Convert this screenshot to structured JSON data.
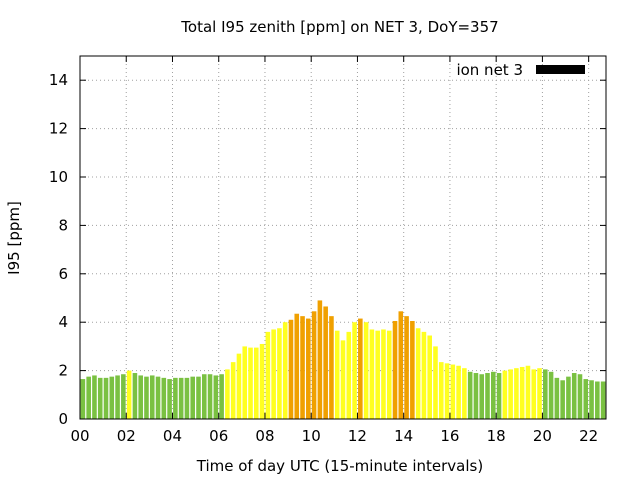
{
  "chart_data": {
    "type": "bar",
    "title": "Total I95 zenith [ppm] on NET 3, DoY=357",
    "xlabel": "Time of day UTC (15-minute intervals)",
    "ylabel": "I95 [ppm]",
    "xlim": [
      0,
      22.75
    ],
    "ylim": [
      0,
      15
    ],
    "x_ticks": [
      "00",
      "02",
      "04",
      "06",
      "08",
      "10",
      "12",
      "14",
      "16",
      "18",
      "20",
      "22"
    ],
    "y_ticks": [
      "0",
      "2",
      "4",
      "6",
      "8",
      "10",
      "12",
      "14"
    ],
    "grid": true,
    "legend": {
      "label": "ion net 3",
      "placement": "top-right",
      "color": "#000000"
    },
    "colors": {
      "green": "#7ac142",
      "yellow": "#ffff20",
      "orange": "#f0a000"
    },
    "interval_hours": 0.25,
    "values": [
      1.65,
      1.75,
      1.8,
      1.7,
      1.7,
      1.75,
      1.8,
      1.85,
      2.0,
      1.9,
      1.8,
      1.75,
      1.8,
      1.75,
      1.7,
      1.65,
      1.7,
      1.7,
      1.7,
      1.75,
      1.75,
      1.85,
      1.85,
      1.8,
      1.85,
      2.05,
      2.35,
      2.7,
      3.0,
      2.95,
      2.95,
      3.1,
      3.6,
      3.7,
      3.75,
      4.0,
      4.1,
      4.35,
      4.25,
      4.15,
      4.45,
      4.9,
      4.65,
      4.25,
      3.65,
      3.25,
      3.6,
      4.0,
      4.15,
      4.0,
      3.7,
      3.65,
      3.7,
      3.65,
      4.05,
      4.45,
      4.25,
      4.05,
      3.75,
      3.6,
      3.45,
      3.0,
      2.35,
      2.3,
      2.25,
      2.2,
      2.1,
      1.95,
      1.9,
      1.85,
      1.9,
      1.95,
      1.9,
      2.0,
      2.05,
      2.1,
      2.15,
      2.2,
      2.05,
      2.1,
      2.05,
      1.95,
      1.7,
      1.6,
      1.75,
      1.9,
      1.85,
      1.65,
      1.6,
      1.55,
      1.55
    ],
    "bar_colors": [
      "green",
      "green",
      "green",
      "green",
      "green",
      "green",
      "green",
      "green",
      "yellow",
      "green",
      "green",
      "green",
      "green",
      "green",
      "green",
      "green",
      "green",
      "green",
      "green",
      "green",
      "green",
      "green",
      "green",
      "green",
      "green",
      "yellow",
      "yellow",
      "yellow",
      "yellow",
      "yellow",
      "yellow",
      "yellow",
      "yellow",
      "yellow",
      "yellow",
      "yellow",
      "orange",
      "orange",
      "orange",
      "orange",
      "orange",
      "orange",
      "orange",
      "orange",
      "yellow",
      "yellow",
      "yellow",
      "yellow",
      "orange",
      "yellow",
      "yellow",
      "yellow",
      "yellow",
      "yellow",
      "orange",
      "orange",
      "orange",
      "orange",
      "yellow",
      "yellow",
      "yellow",
      "yellow",
      "yellow",
      "yellow",
      "yellow",
      "yellow",
      "yellow",
      "green",
      "green",
      "green",
      "green",
      "green",
      "green",
      "yellow",
      "yellow",
      "yellow",
      "yellow",
      "yellow",
      "yellow",
      "yellow",
      "green",
      "green",
      "green",
      "green",
      "green",
      "green",
      "green",
      "green",
      "green",
      "green",
      "green"
    ]
  }
}
